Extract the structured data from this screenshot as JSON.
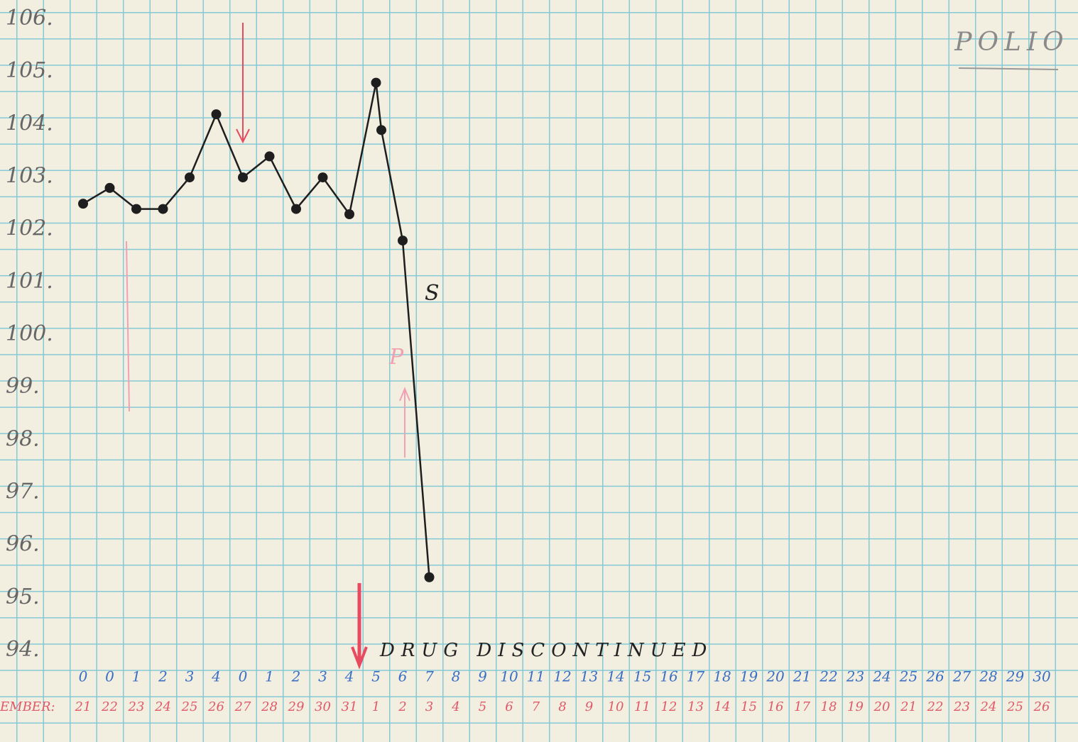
{
  "chart_data": {
    "type": "line",
    "title": "POLIO",
    "annotations": [
      "DRUG DISCONTINUED",
      "S",
      "P"
    ],
    "month_label": "EMBER:",
    "days": [
      "0",
      "0",
      "1",
      "2",
      "3",
      "4",
      "0",
      "1",
      "2",
      "3",
      "4",
      "5",
      "6",
      "7",
      "8",
      "9",
      "10",
      "11",
      "12",
      "13",
      "14",
      "15",
      "16",
      "17",
      "18",
      "19",
      "20",
      "21",
      "22",
      "23",
      "24",
      "25",
      "26",
      "27",
      "28",
      "29",
      "30"
    ],
    "dates": [
      "21",
      "22",
      "23",
      "24",
      "25",
      "26",
      "27",
      "28",
      "29",
      "30",
      "31",
      "1",
      "2",
      "3",
      "4",
      "5",
      "6",
      "7",
      "8",
      "9",
      "10",
      "11",
      "12",
      "13",
      "14",
      "15",
      "16",
      "17",
      "18",
      "19",
      "20",
      "21",
      "22",
      "23",
      "24",
      "25",
      "26"
    ],
    "series": [
      {
        "color": "#1e1e1e",
        "x": [
          0,
          1,
          2,
          3,
          4,
          5,
          6,
          7,
          8,
          9,
          10,
          11,
          11.2,
          12,
          13
        ],
        "values": [
          102.6,
          102.9,
          102.5,
          102.5,
          103.1,
          104.3,
          103.1,
          103.5,
          102.5,
          103.1,
          102.4,
          104.9,
          104.0,
          101.9,
          95.5
        ]
      }
    ],
    "ylim": [
      94,
      106
    ],
    "yticks": [
      {
        "value": 94,
        "label": "94."
      },
      {
        "value": 95,
        "label": "95."
      },
      {
        "value": 96,
        "label": "96."
      },
      {
        "value": 97,
        "label": "97."
      },
      {
        "value": 98,
        "label": "98."
      },
      {
        "value": 99,
        "label": "99."
      },
      {
        "value": 100,
        "label": "100."
      },
      {
        "value": 101,
        "label": "101."
      },
      {
        "value": 102,
        "label": "102."
      },
      {
        "value": 103,
        "label": "103."
      },
      {
        "value": 104,
        "label": "104."
      },
      {
        "value": 105,
        "label": "105."
      },
      {
        "value": 106,
        "label": "106."
      }
    ]
  }
}
